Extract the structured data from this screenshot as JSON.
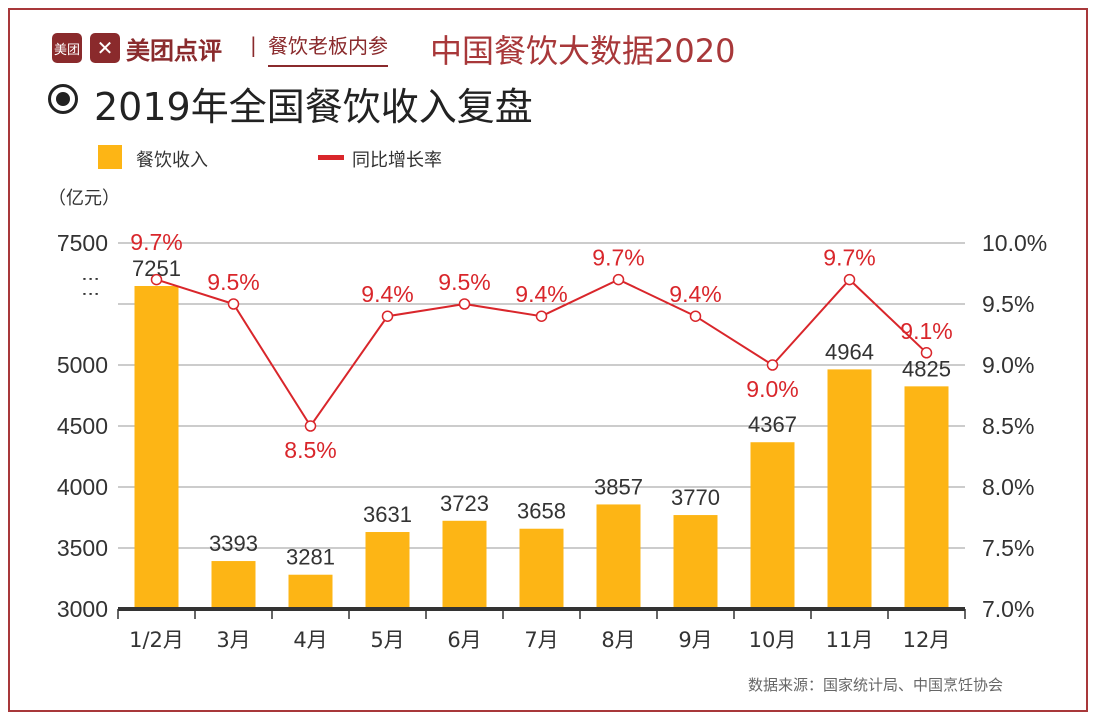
{
  "header": {
    "logo_box_text": "美团",
    "brand": "美团点评",
    "separator": "|",
    "partner": "餐饮老板内参",
    "series_title": "中国餐饮大数据2020"
  },
  "title": "2019年全国餐饮收入复盘",
  "footer": {
    "source": "数据来源：国家统计局、中国烹饪协会"
  },
  "colors": {
    "bar": "#fdb515",
    "line": "#d9262b",
    "brand": "#8a2a2c",
    "title_red": "#a8383a"
  },
  "chart_data": {
    "type": "bar+line",
    "title": "2019年全国餐饮收入复盘",
    "categories": [
      "1/2月",
      "3月",
      "4月",
      "5月",
      "6月",
      "7月",
      "8月",
      "9月",
      "10月",
      "11月",
      "12月"
    ],
    "series": [
      {
        "name": "餐饮收入",
        "type": "bar",
        "axis": "left",
        "values": [
          7251,
          3393,
          3281,
          3631,
          3723,
          3658,
          3857,
          3770,
          4367,
          4964,
          4825
        ],
        "labels": [
          "7251",
          "3393",
          "3281",
          "3631",
          "3723",
          "3658",
          "3857",
          "3770",
          "4367",
          "4964",
          "4825"
        ]
      },
      {
        "name": "同比增长率",
        "type": "line",
        "axis": "right",
        "values": [
          9.7,
          9.5,
          8.5,
          9.4,
          9.5,
          9.4,
          9.7,
          9.4,
          9.0,
          9.7,
          9.1
        ],
        "labels": [
          "9.7%",
          "9.5%",
          "8.5%",
          "9.4%",
          "9.5%",
          "9.4%",
          "9.7%",
          "9.4%",
          "9.0%",
          "9.7%",
          "9.1%"
        ]
      }
    ],
    "y_left": {
      "unit": "（亿元）",
      "ticks": [
        "7500",
        "5000",
        "4500",
        "4000",
        "3500",
        "3000"
      ],
      "ylim": [
        3000,
        7500
      ],
      "broken_axis": true,
      "break_symbol": "⋮"
    },
    "y_right": {
      "ticks": [
        "10.0%",
        "9.5%",
        "9.0%",
        "8.5%",
        "8.0%",
        "7.5%",
        "7.0%"
      ],
      "ylim": [
        7.0,
        10.0
      ]
    },
    "grid": true,
    "legend": "top-left"
  }
}
